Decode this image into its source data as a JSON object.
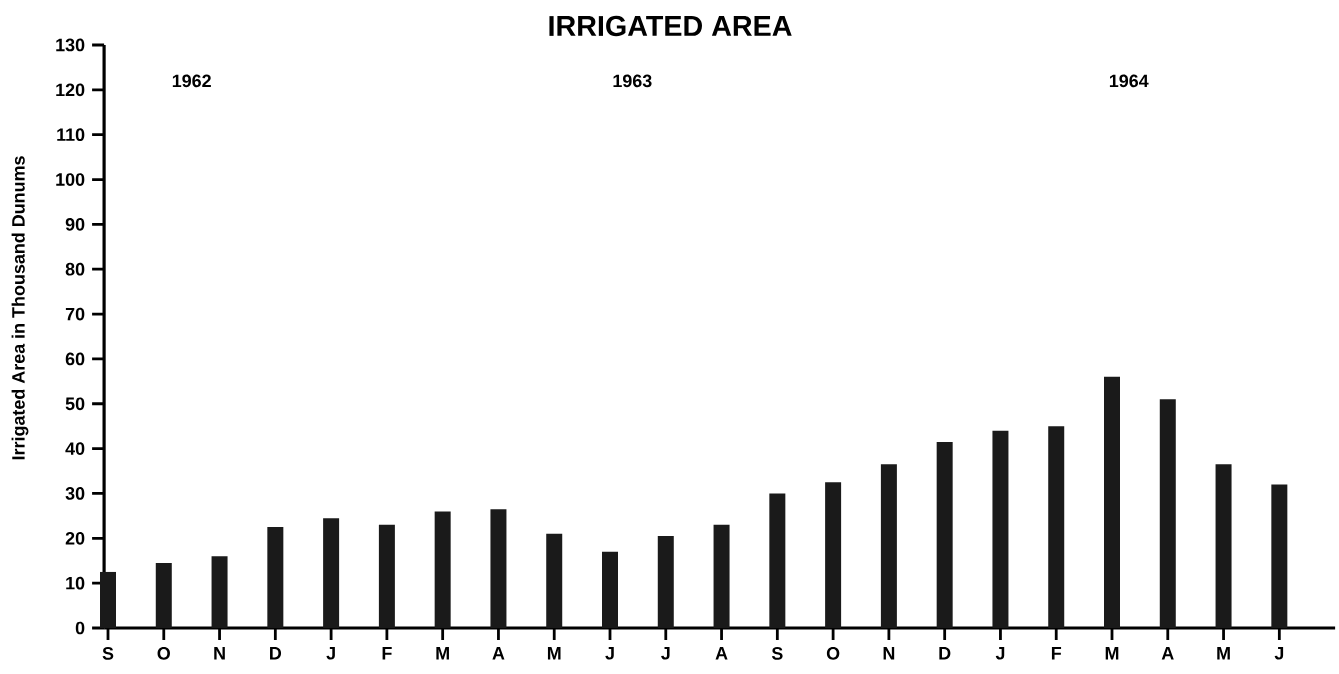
{
  "chart_data": {
    "type": "bar",
    "title": "IRRIGATED AREA",
    "ylabel": "Irrigated Area in Thousand Dunums",
    "categories": [
      "S",
      "O",
      "N",
      "D",
      "J",
      "F",
      "M",
      "A",
      "M",
      "J",
      "J",
      "A",
      "S",
      "O",
      "N",
      "D",
      "J",
      "F",
      "M",
      "A",
      "M",
      "J"
    ],
    "values": [
      12.5,
      14.5,
      16,
      22.5,
      24.5,
      23,
      26,
      26.5,
      21,
      17,
      20.5,
      23,
      30,
      32.5,
      36.5,
      41.5,
      44,
      45,
      56,
      51,
      36.5,
      32
    ],
    "color": "#1a1a1a",
    "ylim": [
      0,
      130
    ],
    "yticks": [
      0,
      10,
      20,
      30,
      40,
      50,
      60,
      70,
      80,
      90,
      100,
      110,
      120,
      130
    ],
    "annotations": [
      "1962",
      "1963",
      "1964"
    ]
  }
}
